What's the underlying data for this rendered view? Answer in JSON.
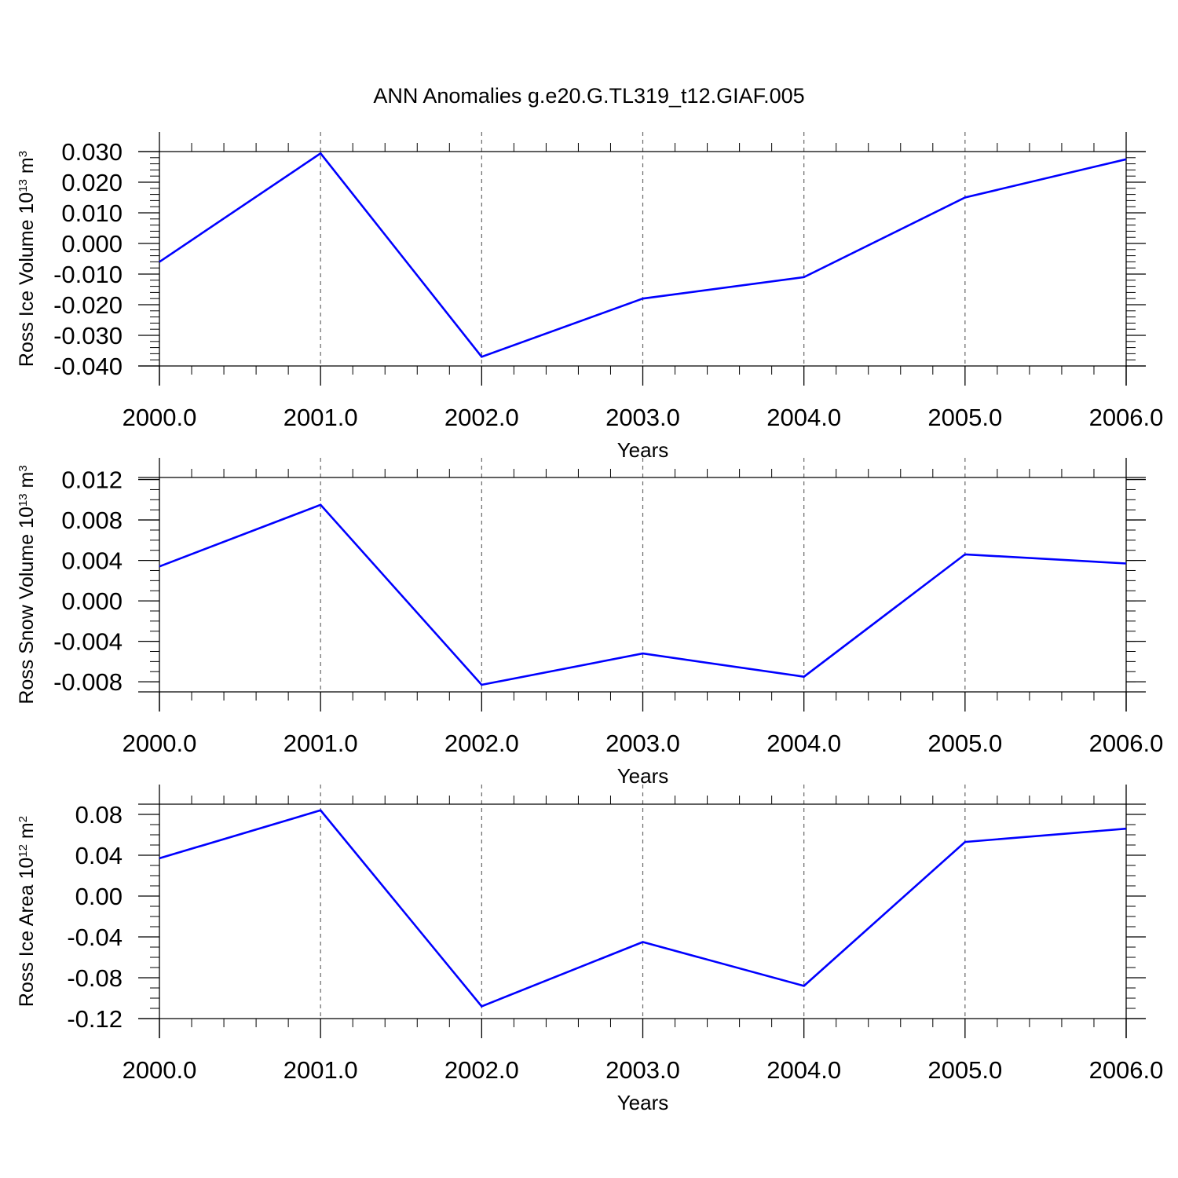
{
  "title": "ANN Anomalies g.e20.G.TL319_t12.GIAF.005",
  "colors": {
    "line": "#0000ff",
    "axis": "#000000",
    "grid": "#666666",
    "background": "#ffffff"
  },
  "chart_data": [
    {
      "type": "line",
      "ylabel": {
        "text": "Ross Ice Volume 10",
        "sup": "13",
        "unit": " m",
        "unit_sup": "3"
      },
      "xlabel": "Years",
      "x": [
        2000,
        2001,
        2002,
        2003,
        2004,
        2005,
        2006
      ],
      "xlim": [
        2000,
        2006
      ],
      "xticks": [
        "2000.0",
        "2001.0",
        "2002.0",
        "2003.0",
        "2004.0",
        "2005.0",
        "2006.0"
      ],
      "ylim": [
        -0.04,
        0.03
      ],
      "yticks": [
        "0.030",
        "0.020",
        "0.010",
        "0.000",
        "-0.010",
        "-0.020",
        "-0.030",
        "-0.040"
      ],
      "ytick_values": [
        0.03,
        0.02,
        0.01,
        0.0,
        -0.01,
        -0.02,
        -0.03,
        -0.04
      ],
      "yminor_step": 0.002,
      "series": [
        {
          "values": [
            -0.006,
            0.0294,
            -0.037,
            -0.018,
            -0.011,
            0.015,
            0.0275
          ]
        }
      ],
      "grid": "vertical dashed at major x ticks"
    },
    {
      "type": "line",
      "ylabel": {
        "text": "Ross Snow Volume 10",
        "sup": "13",
        "unit": " m",
        "unit_sup": "3"
      },
      "xlabel": "Years",
      "x": [
        2000,
        2001,
        2002,
        2003,
        2004,
        2005,
        2006
      ],
      "xlim": [
        2000,
        2006
      ],
      "xticks": [
        "2000.0",
        "2001.0",
        "2002.0",
        "2003.0",
        "2004.0",
        "2005.0",
        "2006.0"
      ],
      "ylim": [
        -0.009,
        0.0122
      ],
      "yticks": [
        "0.012",
        "0.008",
        "0.004",
        "0.000",
        "-0.004",
        "-0.008"
      ],
      "ytick_values": [
        0.012,
        0.008,
        0.004,
        0.0,
        -0.004,
        -0.008
      ],
      "yminor_step": 0.001,
      "series": [
        {
          "values": [
            0.0034,
            0.0095,
            -0.0083,
            -0.0052,
            -0.0075,
            0.0046,
            0.0037
          ]
        }
      ],
      "grid": "vertical dashed at major x ticks"
    },
    {
      "type": "line",
      "ylabel": {
        "text": "Ross Ice Area 10",
        "sup": "12",
        "unit": " m",
        "unit_sup": "2"
      },
      "xlabel": "Years",
      "x": [
        2000,
        2001,
        2002,
        2003,
        2004,
        2005,
        2006
      ],
      "xlim": [
        2000,
        2006
      ],
      "xticks": [
        "2000.0",
        "2001.0",
        "2002.0",
        "2003.0",
        "2004.0",
        "2005.0",
        "2006.0"
      ],
      "ylim": [
        -0.12,
        0.09
      ],
      "yticks": [
        "0.08",
        "0.04",
        "0.00",
        "-0.04",
        "-0.08",
        "-0.12"
      ],
      "ytick_values": [
        0.08,
        0.04,
        0.0,
        -0.04,
        -0.08,
        -0.12
      ],
      "yminor_step": 0.01,
      "series": [
        {
          "values": [
            0.037,
            0.084,
            -0.108,
            -0.045,
            -0.088,
            0.053,
            0.066
          ]
        }
      ],
      "grid": "vertical dashed at major x ticks"
    }
  ]
}
